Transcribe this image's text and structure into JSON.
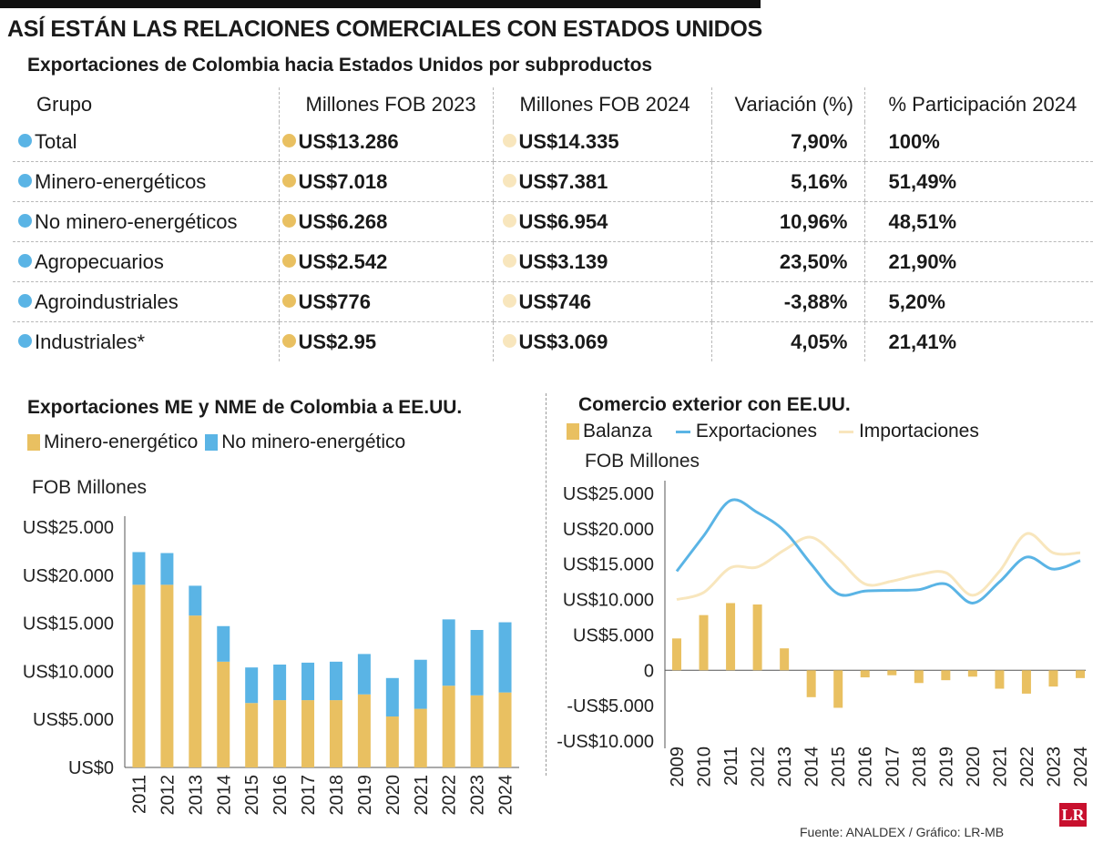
{
  "header": {
    "title": "ASÍ ESTÁN LAS RELACIONES COMERCIALES CON ESTADOS UNIDOS",
    "table_title": "Exportaciones de Colombia hacia Estados Unidos por subproductos"
  },
  "table": {
    "columns": [
      "Grupo",
      "Millones FOB 2023",
      "Millones FOB 2024",
      "Variación (%)",
      "% Participación 2024"
    ],
    "rows": [
      {
        "group": "Total",
        "fob2023": "US$13.286",
        "fob2024": "US$14.335",
        "variation": "7,90%",
        "share": "100%"
      },
      {
        "group": "Minero-energéticos",
        "fob2023": "US$7.018",
        "fob2024": "US$7.381",
        "variation": "5,16%",
        "share": "51,49%"
      },
      {
        "group": "No minero-energéticos",
        "fob2023": "US$6.268",
        "fob2024": "US$6.954",
        "variation": "10,96%",
        "share": "48,51%"
      },
      {
        "group": "Agropecuarios",
        "fob2023": "US$2.542",
        "fob2024": "US$3.139",
        "variation": "23,50%",
        "share": "21,90%"
      },
      {
        "group": "Agroindustriales",
        "fob2023": "US$776",
        "fob2024": "US$746",
        "variation": "-3,88%",
        "share": "5,20%"
      },
      {
        "group": "Industriales*",
        "fob2023": "US$2.95",
        "fob2024": "US$3.069",
        "variation": "4,05%",
        "share": "21,41%"
      }
    ]
  },
  "colors": {
    "blue": "#5ab4e5",
    "gold": "#e9c061",
    "cream": "#f8e6bd"
  },
  "chart_data": [
    {
      "type": "bar",
      "stacked": true,
      "title": "Exportaciones ME y NME de Colombia a EE.UU.",
      "ylabel": "FOB Millones",
      "ylim": [
        0,
        25000
      ],
      "yticks": [
        0,
        5000,
        10000,
        15000,
        20000,
        25000
      ],
      "ytick_labels": [
        "US$0",
        "US$5.000",
        "US$10.000",
        "US$15.000",
        "US$20.000",
        "US$25.000"
      ],
      "categories": [
        "2011",
        "2012",
        "2013",
        "2014",
        "2015",
        "2016",
        "2017",
        "2018",
        "2019",
        "2020",
        "2021",
        "2022",
        "2023",
        "2024"
      ],
      "series": [
        {
          "name": "Minero-energético",
          "color": "#e9c061",
          "values": [
            19000,
            19000,
            15800,
            11000,
            6700,
            7000,
            7000,
            7000,
            7600,
            5300,
            6100,
            8500,
            7500,
            7800
          ]
        },
        {
          "name": "No minero-energético",
          "color": "#5ab4e5",
          "values": [
            3400,
            3300,
            3100,
            3700,
            3700,
            3700,
            3900,
            4000,
            4200,
            4000,
            5100,
            6900,
            6800,
            7300
          ]
        }
      ]
    },
    {
      "type": "line",
      "title": "Comercio exterior con EE.UU.",
      "ylabel": "FOB Millones",
      "ylim": [
        -10000,
        25000
      ],
      "yticks": [
        -10000,
        -5000,
        0,
        5000,
        10000,
        15000,
        20000,
        25000
      ],
      "ytick_labels": [
        "-US$10.000",
        "-US$5.000",
        "0",
        "US$5.000",
        "US$10.000",
        "US$15.000",
        "US$20.000",
        "US$25.000"
      ],
      "x": [
        "2009",
        "2010",
        "2011",
        "2012",
        "2013",
        "2014",
        "2015",
        "2016",
        "2017",
        "2018",
        "2019",
        "2020",
        "2021",
        "2022",
        "2023",
        "2024"
      ],
      "series": [
        {
          "name": "Balanza",
          "kind": "bar",
          "color": "#e9c061",
          "values": [
            4500,
            7800,
            9500,
            9300,
            3100,
            -3800,
            -5300,
            -1000,
            -700,
            -1800,
            -1400,
            -900,
            -2600,
            -3300,
            -2300,
            -1100
          ]
        },
        {
          "name": "Exportaciones",
          "kind": "line",
          "color": "#5ab4e5",
          "values": [
            14000,
            19000,
            24000,
            22300,
            19700,
            15000,
            10800,
            11200,
            11300,
            11400,
            12200,
            9500,
            12500,
            16000,
            14300,
            15500
          ]
        },
        {
          "name": "Importaciones",
          "kind": "line",
          "color": "#f8e6bd",
          "values": [
            10000,
            11000,
            14500,
            14600,
            17000,
            18800,
            15800,
            12200,
            12600,
            13500,
            13800,
            10600,
            14000,
            19300,
            16600,
            16600
          ]
        }
      ]
    }
  ],
  "source": "Fuente:  ANALDEX / Gráfico: LR-MB",
  "logo": "LR"
}
